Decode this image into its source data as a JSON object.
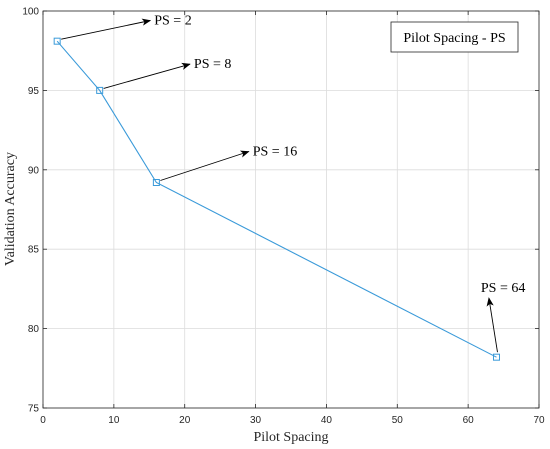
{
  "chart_data": {
    "type": "line",
    "xlabel": "Pilot Spacing",
    "ylabel": "Validation Accuracy",
    "xlim": [
      0,
      70
    ],
    "ylim": [
      75,
      100
    ],
    "xticks": [
      0,
      10,
      20,
      30,
      40,
      50,
      60,
      70
    ],
    "yticks": [
      75,
      80,
      85,
      90,
      95,
      100
    ],
    "grid": true,
    "legend_placement": "top-right",
    "series": [
      {
        "name": "Pilot Spacing - PS",
        "color": "#3a9ad9",
        "marker": "square",
        "x": [
          2,
          8,
          16,
          64
        ],
        "y": [
          98.1,
          95.0,
          89.2,
          78.2
        ]
      }
    ],
    "annotations": [
      {
        "text": "PS = 2",
        "x": 2,
        "y": 98.1,
        "text_x": 15.7,
        "text_y": 99.15
      },
      {
        "text": "PS = 8",
        "x": 8,
        "y": 95.0,
        "text_x": 21.3,
        "text_y": 96.4
      },
      {
        "text": "PS = 16",
        "x": 16,
        "y": 89.2,
        "text_x": 29.6,
        "text_y": 90.9
      },
      {
        "text": "PS = 64",
        "x": 64,
        "y": 78.2,
        "text_x": 61.8,
        "text_y": 82.3
      }
    ]
  }
}
